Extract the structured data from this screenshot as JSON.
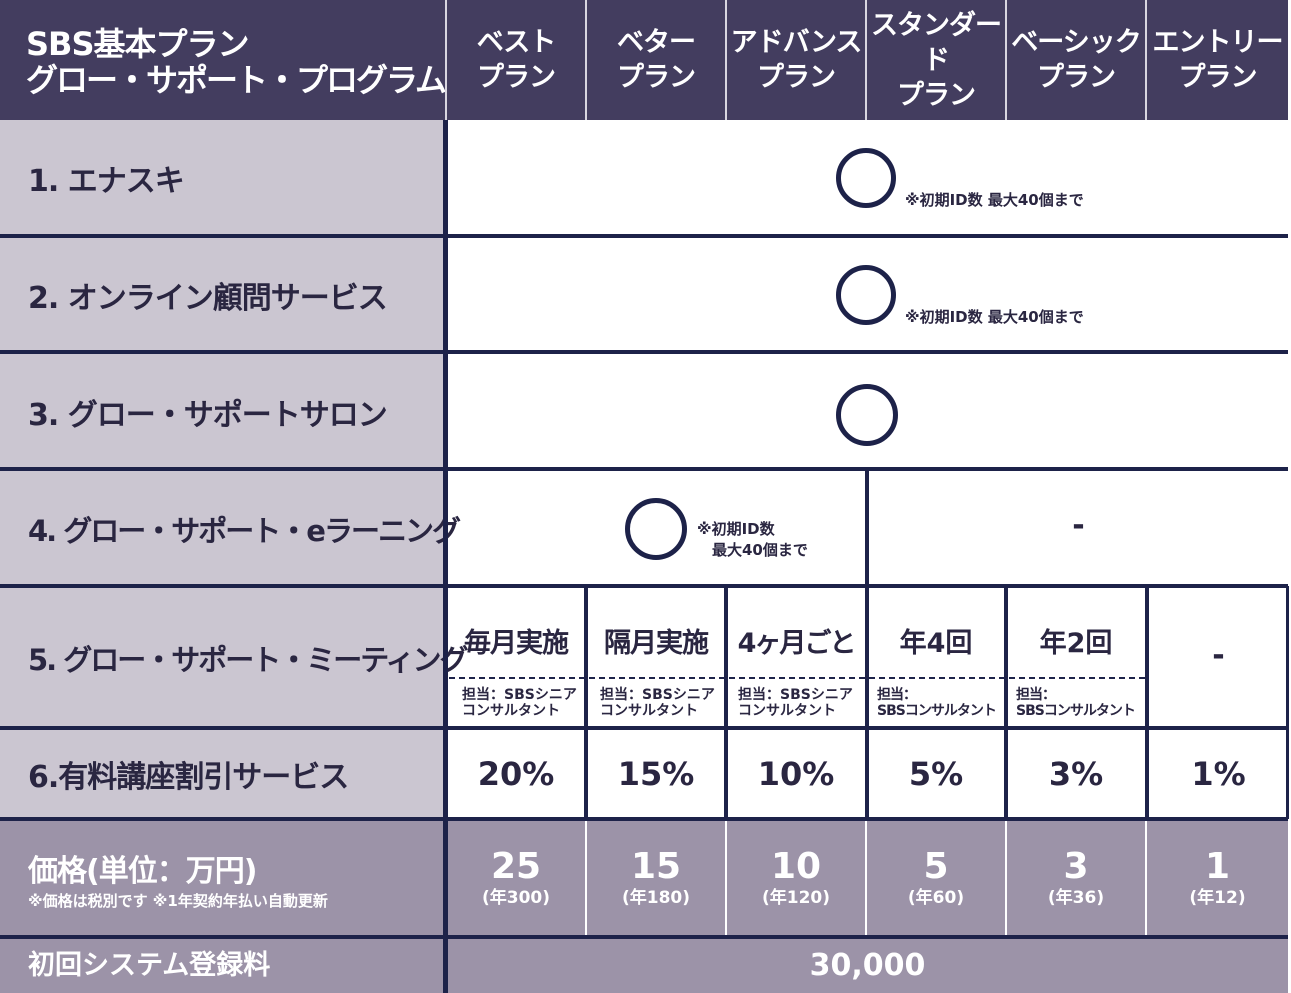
{
  "header": {
    "title_line1": "SBS基本プラン",
    "title_line2": "グロー・サポート・プログラム",
    "plans": [
      "ベスト\nプラン",
      "ベター\nプラン",
      "アドバンス\nプラン",
      "スタンダード\nプラン",
      "ベーシック\nプラン",
      "エントリー\nプラン"
    ]
  },
  "rows": {
    "r1": {
      "label": "1. エナスキ",
      "note": "※初期ID数 最大40個まで"
    },
    "r2": {
      "label": "2. オンライン顧問サービス",
      "note": "※初期ID数 最大40個まで"
    },
    "r3": {
      "label": "3. グロー・サポートサロン"
    },
    "r4": {
      "label": "4. グロー・サポート・eラーニング",
      "note": "※初期ID数\n　最大40個まで",
      "rest": "-"
    },
    "r5": {
      "label": "5. グロー・サポート・ミーティング",
      "freq": [
        "毎月実施",
        "隔月実施",
        "4ヶ月ごと",
        "年4回",
        "年2回",
        "-"
      ],
      "staff": [
        "担当：SBSシニア\nコンサルタント",
        "担当：SBSシニア\nコンサルタント",
        "担当：SBSシニア\nコンサルタント",
        "担当：\nSBSコンサルタント",
        "担当：\nSBSコンサルタント"
      ]
    },
    "r6": {
      "label": "6.有料講座割引サービス",
      "values": [
        "20%",
        "15%",
        "10%",
        "5%",
        "3%",
        "1%"
      ]
    }
  },
  "price": {
    "label": "価格(単位：万円)",
    "note": "※価格は税別です ※1年契約年払い自動更新",
    "values": [
      "25",
      "15",
      "10",
      "5",
      "3",
      "1"
    ],
    "annual": [
      "(年300)",
      "(年180)",
      "(年120)",
      "(年60)",
      "(年36)",
      "(年12)"
    ]
  },
  "registration": {
    "label": "初回システム登録料",
    "value": "30,000"
  },
  "colors": {
    "header": "#433d5f",
    "label_bg": "#cbc6d1",
    "price_bg": "#9c93a8",
    "line": "#1d2249"
  }
}
